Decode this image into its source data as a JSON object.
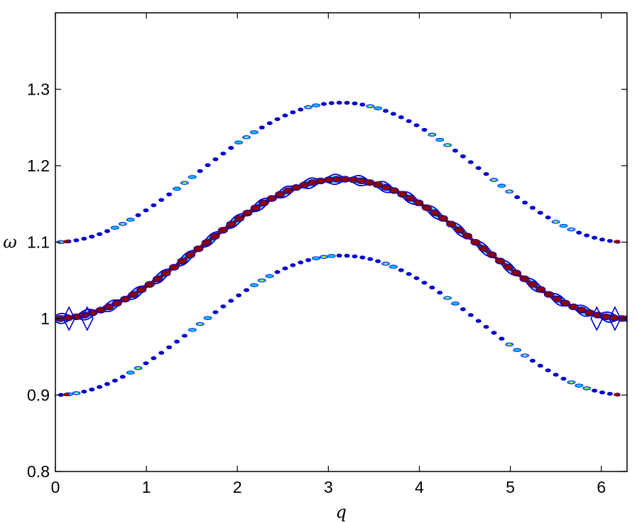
{
  "chart_data": {
    "type": "line",
    "title": "",
    "xlabel": "q",
    "ylabel": "ω",
    "xlim": [
      0,
      6.283
    ],
    "ylim": [
      0.8,
      1.4
    ],
    "xticks": [
      0,
      1,
      2,
      3,
      4,
      5,
      6
    ],
    "yticks": [
      0.8,
      0.9,
      1,
      1.1,
      1.2,
      1.3
    ],
    "xtick_labels": [
      "0",
      "1",
      "2",
      "3",
      "4",
      "5",
      "6"
    ],
    "ytick_labels": [
      "0.8",
      "0.9",
      "1",
      "1.1",
      "1.2",
      "1.3"
    ],
    "grid": false,
    "legend": "none",
    "series": [
      {
        "band": "central",
        "x": [
          0,
          0.5,
          1.0,
          1.5,
          2.0,
          2.5,
          3.14,
          3.8,
          4.3,
          4.8,
          5.3,
          5.8,
          6.283
        ],
        "values": [
          1.0,
          1.012,
          1.045,
          1.09,
          1.135,
          1.168,
          1.182,
          1.165,
          1.135,
          1.09,
          1.045,
          1.012,
          1.0
        ],
        "color": "#8b0000"
      },
      {
        "band": "upper",
        "x": [
          0,
          0.5,
          1.0,
          1.5,
          2.0,
          2.5,
          3.14,
          3.8,
          4.3,
          4.8,
          5.3,
          5.8,
          6.283
        ],
        "values": [
          1.1,
          1.112,
          1.145,
          1.19,
          1.235,
          1.268,
          1.282,
          1.265,
          1.235,
          1.19,
          1.145,
          1.112,
          1.1
        ],
        "color": "#1e90ff"
      },
      {
        "band": "lower",
        "x": [
          0,
          0.5,
          1.0,
          1.5,
          2.0,
          2.5,
          3.14,
          3.8,
          4.3,
          4.8,
          5.3,
          5.8,
          6.283
        ],
        "values": [
          0.9,
          0.912,
          0.945,
          0.99,
          1.035,
          1.068,
          1.082,
          1.065,
          1.035,
          0.99,
          0.945,
          0.912,
          0.9
        ],
        "color": "#1e90ff"
      }
    ],
    "colors": {
      "axes": "#000000",
      "contour_outer": "#0000cd",
      "contour_mid": "#00bfff",
      "contour_inner": "#ffd700",
      "contour_core": "#8b0000"
    }
  }
}
